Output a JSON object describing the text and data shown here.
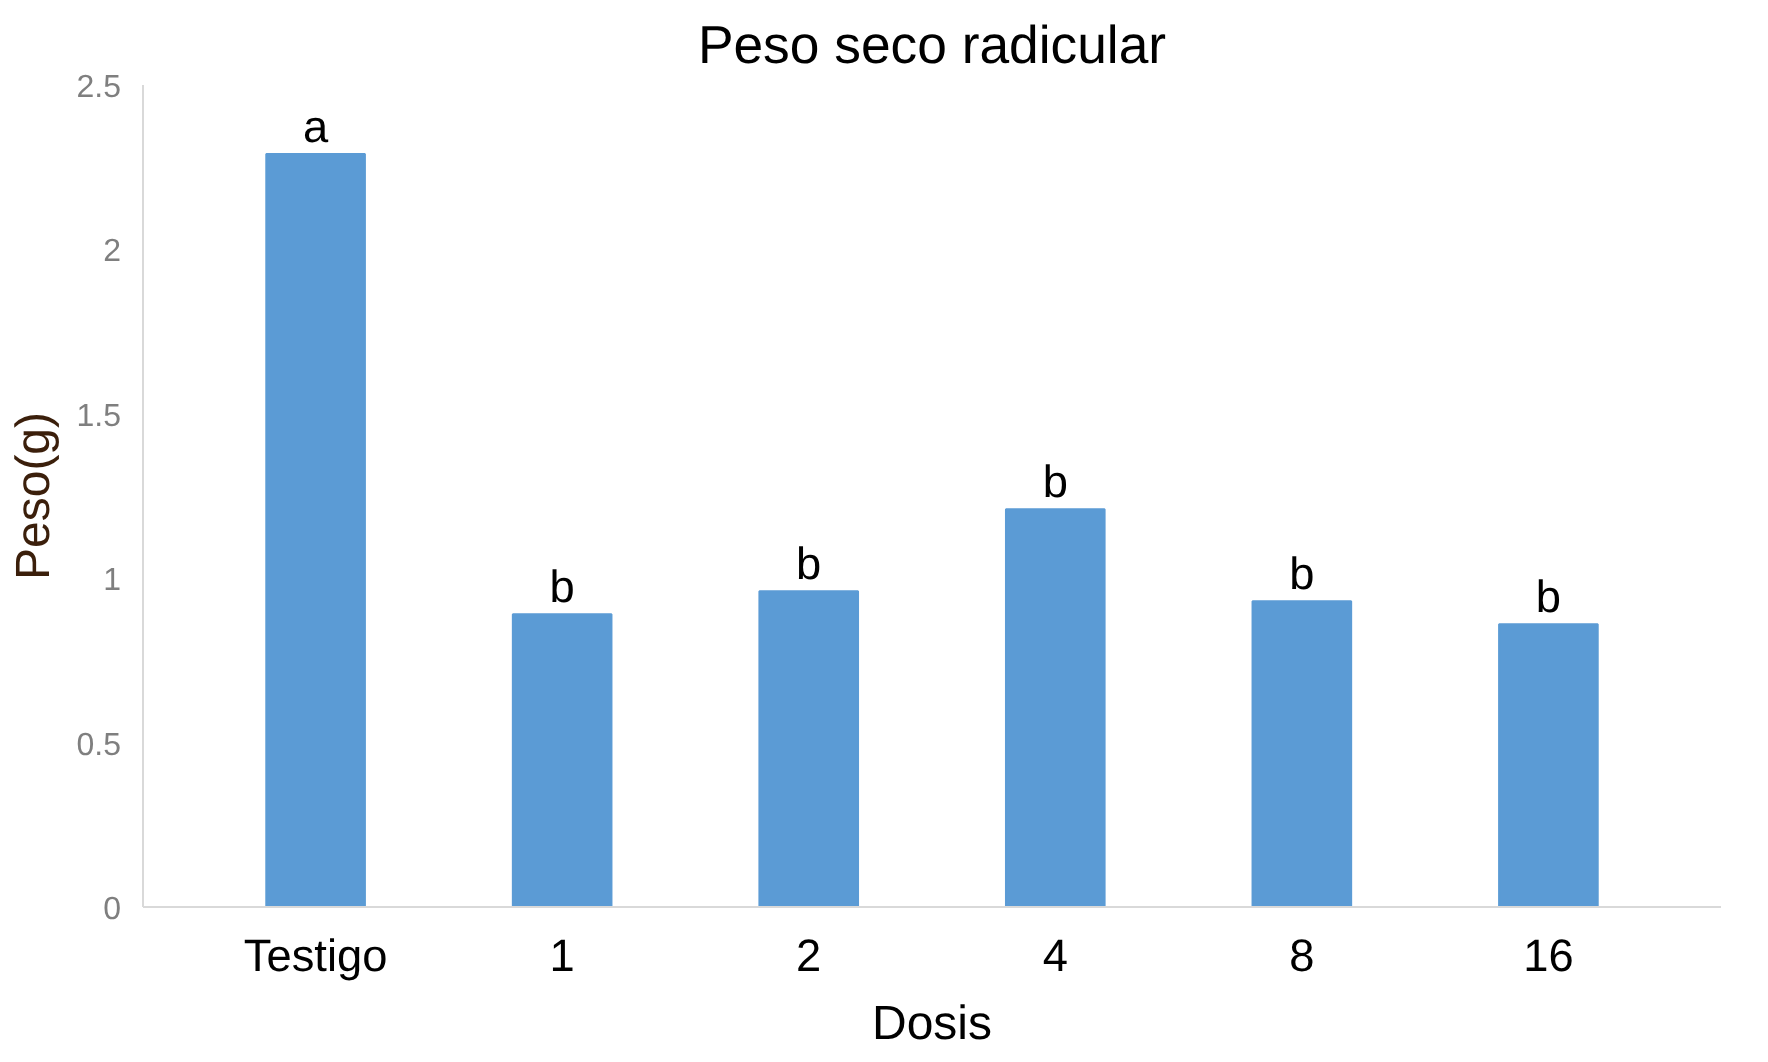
{
  "chart_data": {
    "type": "bar",
    "title": "Peso seco radicular",
    "xlabel": "Dosis",
    "ylabel": "Peso(g)",
    "categories": [
      "Testigo",
      "1",
      "2",
      "4",
      "8",
      "16"
    ],
    "values": [
      2.29,
      0.89,
      0.96,
      1.21,
      0.93,
      0.86
    ],
    "color": "#5b9bd5",
    "ylim": [
      0,
      2.5
    ],
    "yticks": [
      0,
      0.5,
      1,
      1.5,
      2,
      2.5
    ],
    "grid": false,
    "annotations": [
      {
        "text": "a",
        "x": "Testigo",
        "y": 2.29
      },
      {
        "text": "b",
        "x": "1",
        "y": 0.89
      },
      {
        "text": "b",
        "x": "2",
        "y": 0.96
      },
      {
        "text": "b",
        "x": "4",
        "y": 1.21
      },
      {
        "text": "b",
        "x": "8",
        "y": 0.93
      },
      {
        "text": "b",
        "x": "16",
        "y": 0.86
      }
    ]
  }
}
